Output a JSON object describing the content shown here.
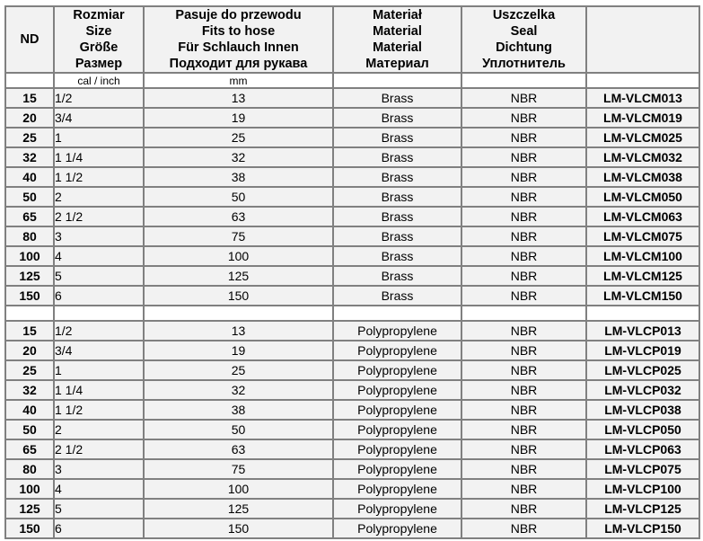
{
  "headers": {
    "nd": "ND",
    "size": [
      "Rozmiar",
      "Size",
      "Größe",
      "Размер"
    ],
    "hose": [
      "Pasuje do przewodu",
      "Fits to hose",
      "Für Schlauch Innen",
      "Подходит для рукава"
    ],
    "material": [
      "Materiał",
      "Material",
      "Material",
      "Материал"
    ],
    "seal": [
      "Uszczelka",
      "Seal",
      "Dichtung",
      "Уплотнитель"
    ],
    "code": ""
  },
  "units": {
    "size": "cal / inch",
    "hose": "mm"
  },
  "groups": [
    {
      "rows": [
        {
          "nd": "15",
          "size": "1/2",
          "hose": "13",
          "material": "Brass",
          "seal": "NBR",
          "code": "LM-VLCM013"
        },
        {
          "nd": "20",
          "size": "3/4",
          "hose": "19",
          "material": "Brass",
          "seal": "NBR",
          "code": "LM-VLCM019"
        },
        {
          "nd": "25",
          "size": "1",
          "hose": "25",
          "material": "Brass",
          "seal": "NBR",
          "code": "LM-VLCM025"
        },
        {
          "nd": "32",
          "size": "1 1/4",
          "hose": "32",
          "material": "Brass",
          "seal": "NBR",
          "code": "LM-VLCM032"
        },
        {
          "nd": "40",
          "size": "1 1/2",
          "hose": "38",
          "material": "Brass",
          "seal": "NBR",
          "code": "LM-VLCM038"
        },
        {
          "nd": "50",
          "size": "2",
          "hose": "50",
          "material": "Brass",
          "seal": "NBR",
          "code": "LM-VLCM050"
        },
        {
          "nd": "65",
          "size": "2 1/2",
          "hose": "63",
          "material": "Brass",
          "seal": "NBR",
          "code": "LM-VLCM063"
        },
        {
          "nd": "80",
          "size": "3",
          "hose": "75",
          "material": "Brass",
          "seal": "NBR",
          "code": "LM-VLCM075"
        },
        {
          "nd": "100",
          "size": "4",
          "hose": "100",
          "material": "Brass",
          "seal": "NBR",
          "code": "LM-VLCM100"
        },
        {
          "nd": "125",
          "size": "5",
          "hose": "125",
          "material": "Brass",
          "seal": "NBR",
          "code": "LM-VLCM125"
        },
        {
          "nd": "150",
          "size": "6",
          "hose": "150",
          "material": "Brass",
          "seal": "NBR",
          "code": "LM-VLCM150"
        }
      ]
    },
    {
      "rows": [
        {
          "nd": "15",
          "size": "1/2",
          "hose": "13",
          "material": "Polypropylene",
          "seal": "NBR",
          "code": "LM-VLCP013"
        },
        {
          "nd": "20",
          "size": "3/4",
          "hose": "19",
          "material": "Polypropylene",
          "seal": "NBR",
          "code": "LM-VLCP019"
        },
        {
          "nd": "25",
          "size": "1",
          "hose": "25",
          "material": "Polypropylene",
          "seal": "NBR",
          "code": "LM-VLCP025"
        },
        {
          "nd": "32",
          "size": "1 1/4",
          "hose": "32",
          "material": "Polypropylene",
          "seal": "NBR",
          "code": "LM-VLCP032"
        },
        {
          "nd": "40",
          "size": "1 1/2",
          "hose": "38",
          "material": "Polypropylene",
          "seal": "NBR",
          "code": "LM-VLCP038"
        },
        {
          "nd": "50",
          "size": "2",
          "hose": "50",
          "material": "Polypropylene",
          "seal": "NBR",
          "code": "LM-VLCP050"
        },
        {
          "nd": "65",
          "size": "2 1/2",
          "hose": "63",
          "material": "Polypropylene",
          "seal": "NBR",
          "code": "LM-VLCP063"
        },
        {
          "nd": "80",
          "size": "3",
          "hose": "75",
          "material": "Polypropylene",
          "seal": "NBR",
          "code": "LM-VLCP075"
        },
        {
          "nd": "100",
          "size": "4",
          "hose": "100",
          "material": "Polypropylene",
          "seal": "NBR",
          "code": "LM-VLCP100"
        },
        {
          "nd": "125",
          "size": "5",
          "hose": "125",
          "material": "Polypropylene",
          "seal": "NBR",
          "code": "LM-VLCP125"
        },
        {
          "nd": "150",
          "size": "6",
          "hose": "150",
          "material": "Polypropylene",
          "seal": "NBR",
          "code": "LM-VLCP150"
        }
      ]
    }
  ]
}
